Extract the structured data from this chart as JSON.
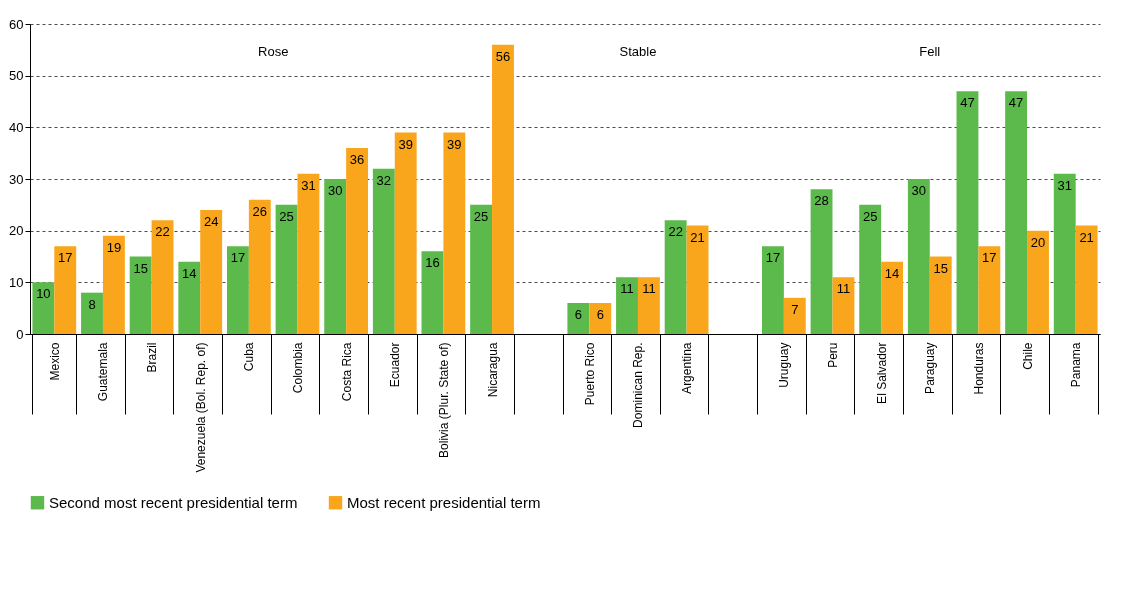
{
  "chart_data": {
    "type": "bar",
    "categories": [
      "Mexico",
      "Guatemala",
      "Brazil",
      "Venezuela (Bol. Rep. of)",
      "Cuba",
      "Colombia",
      "Costa Rica",
      "Ecuador",
      "Bolivia (Plur. State of)",
      "Nicaragua",
      null,
      "Puerto Rico",
      "Dominican Rep.",
      "Argentina",
      null,
      "Uruguay",
      "Peru",
      "El Salvador",
      "Paraguay",
      "Honduras",
      "Chile",
      "Panama"
    ],
    "series": [
      {
        "name": "Second most recent presidential term",
        "color": "#5cb94c",
        "values": [
          10,
          8,
          15,
          14,
          17,
          25,
          30,
          32,
          16,
          25,
          null,
          6,
          11,
          22,
          null,
          17,
          28,
          25,
          30,
          47,
          47,
          31
        ]
      },
      {
        "name": "Most recent presidential term",
        "color": "#f9a61c",
        "values": [
          17,
          19,
          22,
          24,
          26,
          31,
          36,
          39,
          39,
          56,
          null,
          6,
          11,
          21,
          null,
          7,
          11,
          14,
          15,
          17,
          20,
          21
        ]
      }
    ],
    "annotations": [
      "Rose",
      "Stable",
      "Fell"
    ],
    "ylim": [
      0,
      60
    ],
    "yticks": [
      0,
      10,
      20,
      30,
      40,
      50,
      60
    ],
    "grid": "y",
    "legend": "bottom",
    "data_labels": true
  }
}
